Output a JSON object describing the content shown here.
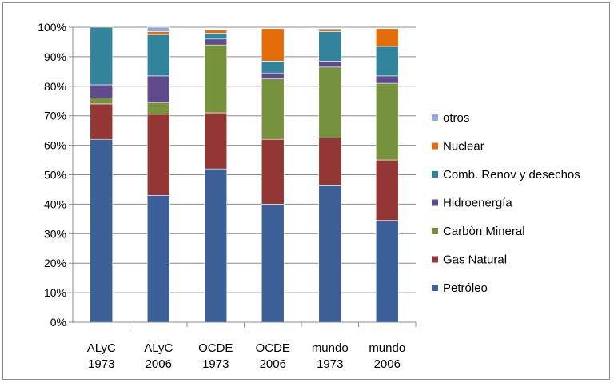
{
  "chart_data": {
    "type": "bar",
    "stacked": true,
    "percent": true,
    "categories": [
      [
        "ALyC",
        "1973"
      ],
      [
        "ALyC",
        "2006"
      ],
      [
        "OCDE",
        "1973"
      ],
      [
        "OCDE",
        "2006"
      ],
      [
        "mundo",
        "1973"
      ],
      [
        "mundo",
        "2006"
      ]
    ],
    "ylim": [
      0,
      100
    ],
    "yticks": [
      "0%",
      "10%",
      "20%",
      "30%",
      "40%",
      "50%",
      "60%",
      "70%",
      "80%",
      "90%",
      "100%"
    ],
    "grid": "horizontal",
    "legend_position": "right",
    "series": [
      {
        "name": "Petróleo",
        "color": "#3b5f96",
        "values": [
          62,
          43,
          52,
          40,
          46.5,
          34.5
        ]
      },
      {
        "name": "Gas Natural",
        "color": "#943634",
        "values": [
          12,
          27.5,
          19,
          22,
          16,
          20.5
        ]
      },
      {
        "name": "Carbòn Mineral",
        "color": "#76923c",
        "values": [
          2,
          4,
          23,
          20.5,
          24,
          26
        ]
      },
      {
        "name": "Hidroenergía",
        "color": "#5f4a8b",
        "values": [
          4.5,
          9,
          2,
          2,
          2,
          2.5
        ]
      },
      {
        "name": "Comb. Renov y desechos",
        "color": "#31849b",
        "values": [
          19.5,
          14,
          2,
          4,
          10,
          10
        ]
      },
      {
        "name": "Nuclear",
        "color": "#e36c09",
        "values": [
          0,
          1,
          1,
          11,
          0.5,
          6
        ]
      },
      {
        "name": "otros",
        "color": "#8eaadb",
        "values": [
          0,
          1.5,
          0,
          0,
          0.5,
          0
        ]
      }
    ],
    "legend_order": [
      "otros",
      "Nuclear",
      "Comb. Renov y desechos",
      "Hidroenergía",
      "Carbòn Mineral",
      "Gas Natural",
      "Petróleo"
    ]
  }
}
